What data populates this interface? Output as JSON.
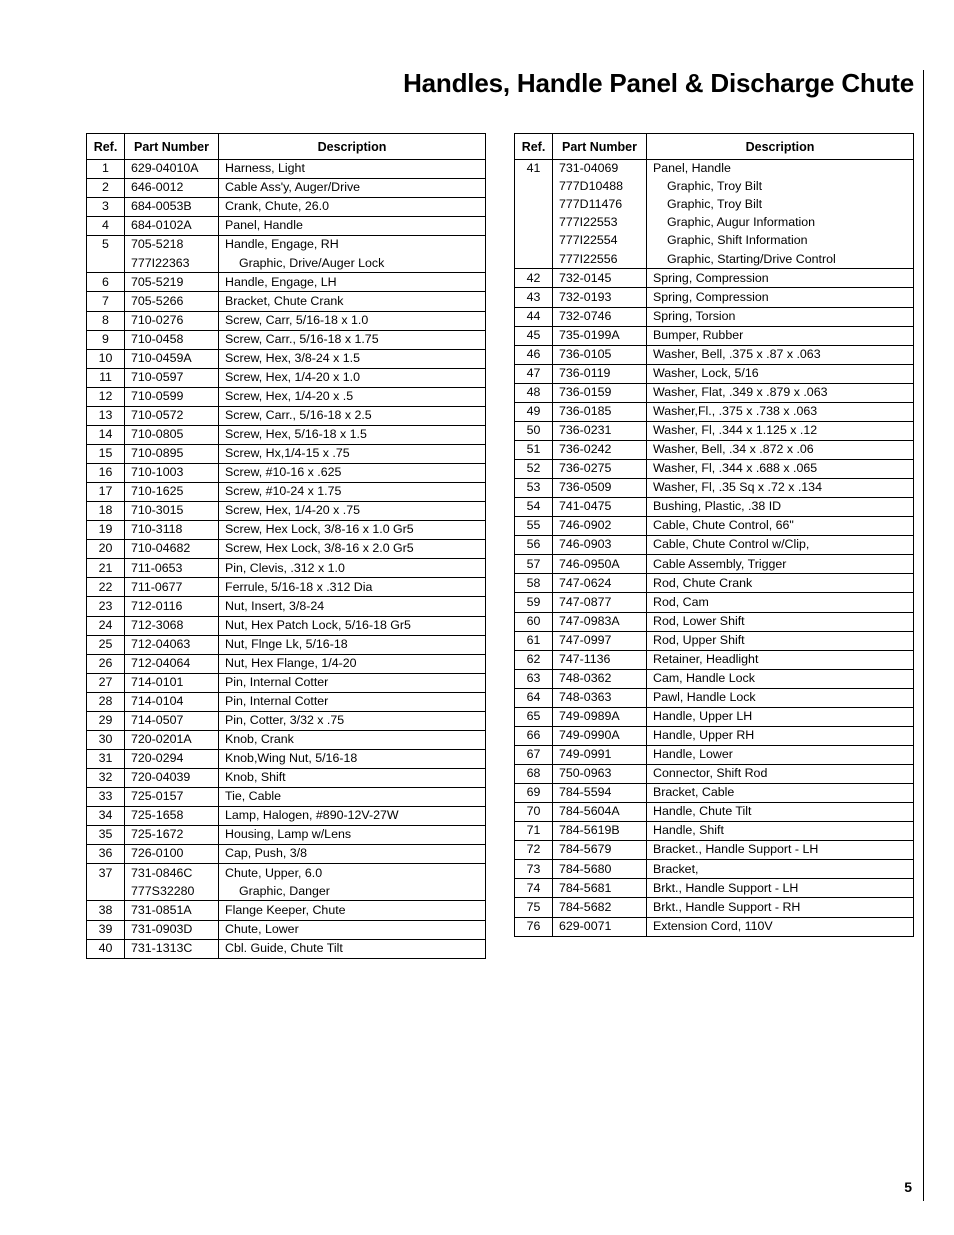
{
  "title": "Handles, Handle Panel & Discharge Chute",
  "page_number": "5",
  "headers": {
    "ref": "Ref.",
    "pn": "Part Number",
    "desc": "Description"
  },
  "left": [
    {
      "ref": "1",
      "pn": [
        "629-04010A"
      ],
      "desc": [
        "Harness, Light"
      ]
    },
    {
      "ref": "2",
      "pn": [
        "646-0012"
      ],
      "desc": [
        "Cable Ass'y, Auger/Drive"
      ]
    },
    {
      "ref": "3",
      "pn": [
        "684-0053B"
      ],
      "desc": [
        "Crank, Chute, 26.0"
      ]
    },
    {
      "ref": "4",
      "pn": [
        "684-0102A"
      ],
      "desc": [
        "Panel, Handle"
      ]
    },
    {
      "ref": "5",
      "pn": [
        "705-5218",
        "777I22363"
      ],
      "desc": [
        "Handle, Engage, RH",
        "Graphic, Drive/Auger Lock"
      ],
      "sub": [
        0,
        1
      ]
    },
    {
      "ref": "6",
      "pn": [
        "705-5219"
      ],
      "desc": [
        "Handle, Engage, LH"
      ]
    },
    {
      "ref": "7",
      "pn": [
        "705-5266"
      ],
      "desc": [
        "Bracket, Chute Crank"
      ]
    },
    {
      "ref": "8",
      "pn": [
        "710-0276"
      ],
      "desc": [
        "Screw, Carr, 5/16-18 x 1.0"
      ]
    },
    {
      "ref": "9",
      "pn": [
        "710-0458"
      ],
      "desc": [
        "Screw, Carr., 5/16-18 x 1.75"
      ]
    },
    {
      "ref": "10",
      "pn": [
        "710-0459A"
      ],
      "desc": [
        "Screw, Hex, 3/8-24 x 1.5"
      ]
    },
    {
      "ref": "11",
      "pn": [
        "710-0597"
      ],
      "desc": [
        "Screw, Hex, 1/4-20 x 1.0"
      ]
    },
    {
      "ref": "12",
      "pn": [
        "710-0599"
      ],
      "desc": [
        "Screw, Hex, 1/4-20 x .5"
      ]
    },
    {
      "ref": "13",
      "pn": [
        "710-0572"
      ],
      "desc": [
        "Screw, Carr., 5/16-18 x 2.5"
      ]
    },
    {
      "ref": "14",
      "pn": [
        "710-0805"
      ],
      "desc": [
        "Screw, Hex, 5/16-18 x 1.5"
      ]
    },
    {
      "ref": "15",
      "pn": [
        "710-0895"
      ],
      "desc": [
        "Screw, Hx,1/4-15 x .75"
      ]
    },
    {
      "ref": "16",
      "pn": [
        "710-1003"
      ],
      "desc": [
        "Screw, #10-16 x .625"
      ]
    },
    {
      "ref": "17",
      "pn": [
        "710-1625"
      ],
      "desc": [
        "Screw, #10-24 x 1.75"
      ]
    },
    {
      "ref": "18",
      "pn": [
        "710-3015"
      ],
      "desc": [
        "Screw, Hex, 1/4-20 x .75"
      ]
    },
    {
      "ref": "19",
      "pn": [
        "710-3118"
      ],
      "desc": [
        "Screw, Hex Lock, 3/8-16 x 1.0 Gr5"
      ]
    },
    {
      "ref": "20",
      "pn": [
        "710-04682"
      ],
      "desc": [
        "Screw, Hex Lock, 3/8-16 x 2.0 Gr5"
      ]
    },
    {
      "ref": "21",
      "pn": [
        "711-0653"
      ],
      "desc": [
        "Pin, Clevis, .312 x 1.0"
      ]
    },
    {
      "ref": "22",
      "pn": [
        "711-0677"
      ],
      "desc": [
        "Ferrule, 5/16-18 x .312 Dia"
      ]
    },
    {
      "ref": "23",
      "pn": [
        "712-0116"
      ],
      "desc": [
        "Nut, Insert, 3/8-24"
      ]
    },
    {
      "ref": "24",
      "pn": [
        "712-3068"
      ],
      "desc": [
        "Nut, Hex Patch Lock, 5/16-18 Gr5"
      ]
    },
    {
      "ref": "25",
      "pn": [
        "712-04063"
      ],
      "desc": [
        "Nut, Flnge Lk, 5/16-18"
      ]
    },
    {
      "ref": "26",
      "pn": [
        "712-04064"
      ],
      "desc": [
        "Nut, Hex Flange, 1/4-20"
      ]
    },
    {
      "ref": "27",
      "pn": [
        "714-0101"
      ],
      "desc": [
        "Pin, Internal Cotter"
      ]
    },
    {
      "ref": "28",
      "pn": [
        "714-0104"
      ],
      "desc": [
        "Pin, Internal Cotter"
      ]
    },
    {
      "ref": "29",
      "pn": [
        "714-0507"
      ],
      "desc": [
        "Pin, Cotter, 3/32 x .75"
      ]
    },
    {
      "ref": "30",
      "pn": [
        "720-0201A"
      ],
      "desc": [
        "Knob, Crank"
      ]
    },
    {
      "ref": "31",
      "pn": [
        "720-0294"
      ],
      "desc": [
        "Knob,Wing Nut, 5/16-18"
      ]
    },
    {
      "ref": "32",
      "pn": [
        "720-04039"
      ],
      "desc": [
        "Knob, Shift"
      ]
    },
    {
      "ref": "33",
      "pn": [
        "725-0157"
      ],
      "desc": [
        "Tie, Cable"
      ]
    },
    {
      "ref": "34",
      "pn": [
        "725-1658"
      ],
      "desc": [
        "Lamp, Halogen, #890-12V-27W"
      ]
    },
    {
      "ref": "35",
      "pn": [
        "725-1672"
      ],
      "desc": [
        "Housing, Lamp w/Lens"
      ]
    },
    {
      "ref": "36",
      "pn": [
        "726-0100"
      ],
      "desc": [
        "Cap, Push, 3/8"
      ]
    },
    {
      "ref": "37",
      "pn": [
        "731-0846C",
        "777S32280"
      ],
      "desc": [
        "Chute, Upper, 6.0",
        "Graphic, Danger"
      ],
      "sub": [
        0,
        1
      ]
    },
    {
      "ref": "38",
      "pn": [
        "731-0851A"
      ],
      "desc": [
        "Flange Keeper, Chute"
      ]
    },
    {
      "ref": "39",
      "pn": [
        "731-0903D"
      ],
      "desc": [
        "Chute, Lower"
      ]
    },
    {
      "ref": "40",
      "pn": [
        "731-1313C"
      ],
      "desc": [
        "Cbl. Guide, Chute Tilt"
      ]
    }
  ],
  "right": [
    {
      "ref": "41",
      "pn": [
        "731-04069",
        "777D10488",
        "777D11476",
        "777I22553",
        "777I22554",
        "777I22556"
      ],
      "desc": [
        "Panel, Handle",
        "Graphic, Troy Bilt",
        "Graphic, Troy Bilt",
        "Graphic, Augur Information",
        "Graphic, Shift Information",
        "Graphic, Starting/Drive Control"
      ],
      "sub": [
        0,
        1,
        1,
        1,
        1,
        1
      ]
    },
    {
      "ref": "42",
      "pn": [
        "732-0145"
      ],
      "desc": [
        "Spring, Compression"
      ]
    },
    {
      "ref": "43",
      "pn": [
        "732-0193"
      ],
      "desc": [
        "Spring, Compression"
      ]
    },
    {
      "ref": "44",
      "pn": [
        "732-0746"
      ],
      "desc": [
        "Spring, Torsion"
      ]
    },
    {
      "ref": "45",
      "pn": [
        "735-0199A"
      ],
      "desc": [
        "Bumper, Rubber"
      ]
    },
    {
      "ref": "46",
      "pn": [
        "736-0105"
      ],
      "desc": [
        "Washer, Bell, .375 x .87 x .063"
      ]
    },
    {
      "ref": "47",
      "pn": [
        "736-0119"
      ],
      "desc": [
        "Washer, Lock, 5/16"
      ]
    },
    {
      "ref": "48",
      "pn": [
        "736-0159"
      ],
      "desc": [
        "Washer, Flat, .349 x .879 x .063"
      ]
    },
    {
      "ref": "49",
      "pn": [
        "736-0185"
      ],
      "desc": [
        "Washer,Fl., .375 x .738 x .063"
      ]
    },
    {
      "ref": "50",
      "pn": [
        "736-0231"
      ],
      "desc": [
        "Washer, Fl, .344 x 1.125 x .12"
      ]
    },
    {
      "ref": "51",
      "pn": [
        "736-0242"
      ],
      "desc": [
        "Washer, Bell, .34 x .872 x .06"
      ]
    },
    {
      "ref": "52",
      "pn": [
        "736-0275"
      ],
      "desc": [
        "Washer, Fl, .344 x .688 x .065"
      ]
    },
    {
      "ref": "53",
      "pn": [
        "736-0509"
      ],
      "desc": [
        "Washer, Fl, .35 Sq x .72 x .134"
      ]
    },
    {
      "ref": "54",
      "pn": [
        "741-0475"
      ],
      "desc": [
        "Bushing, Plastic, .38 ID"
      ]
    },
    {
      "ref": "55",
      "pn": [
        "746-0902"
      ],
      "desc": [
        "Cable, Chute Control, 66\""
      ]
    },
    {
      "ref": "56",
      "pn": [
        "746-0903"
      ],
      "desc": [
        "Cable, Chute Control w/Clip,"
      ]
    },
    {
      "ref": "57",
      "pn": [
        "746-0950A"
      ],
      "desc": [
        "Cable Assembly, Trigger"
      ]
    },
    {
      "ref": "58",
      "pn": [
        "747-0624"
      ],
      "desc": [
        "Rod, Chute Crank"
      ]
    },
    {
      "ref": "59",
      "pn": [
        "747-0877"
      ],
      "desc": [
        "Rod, Cam"
      ]
    },
    {
      "ref": "60",
      "pn": [
        "747-0983A"
      ],
      "desc": [
        "Rod, Lower Shift"
      ]
    },
    {
      "ref": "61",
      "pn": [
        "747-0997"
      ],
      "desc": [
        "Rod, Upper Shift"
      ]
    },
    {
      "ref": "62",
      "pn": [
        "747-1136"
      ],
      "desc": [
        "Retainer, Headlight"
      ]
    },
    {
      "ref": "63",
      "pn": [
        "748-0362"
      ],
      "desc": [
        "Cam, Handle Lock"
      ]
    },
    {
      "ref": "64",
      "pn": [
        "748-0363"
      ],
      "desc": [
        "Pawl, Handle Lock"
      ]
    },
    {
      "ref": "65",
      "pn": [
        "749-0989A"
      ],
      "desc": [
        "Handle, Upper LH"
      ]
    },
    {
      "ref": "66",
      "pn": [
        "749-0990A"
      ],
      "desc": [
        "Handle, Upper RH"
      ]
    },
    {
      "ref": "67",
      "pn": [
        "749-0991"
      ],
      "desc": [
        "Handle, Lower"
      ]
    },
    {
      "ref": "68",
      "pn": [
        "750-0963"
      ],
      "desc": [
        "Connector, Shift Rod"
      ]
    },
    {
      "ref": "69",
      "pn": [
        "784-5594"
      ],
      "desc": [
        "Bracket, Cable"
      ]
    },
    {
      "ref": "70",
      "pn": [
        "784-5604A"
      ],
      "desc": [
        "Handle, Chute Tilt"
      ]
    },
    {
      "ref": "71",
      "pn": [
        "784-5619B"
      ],
      "desc": [
        "Handle, Shift"
      ]
    },
    {
      "ref": "72",
      "pn": [
        "784-5679"
      ],
      "desc": [
        "Bracket., Handle Support - LH"
      ]
    },
    {
      "ref": "73",
      "pn": [
        "784-5680"
      ],
      "desc": [
        "Bracket,"
      ]
    },
    {
      "ref": "74",
      "pn": [
        "784-5681"
      ],
      "desc": [
        "Brkt., Handle Support - LH"
      ]
    },
    {
      "ref": "75",
      "pn": [
        "784-5682"
      ],
      "desc": [
        "Brkt., Handle Support - RH"
      ]
    },
    {
      "ref": "76",
      "pn": [
        "629-0071"
      ],
      "desc": [
        "Extension Cord, 110V"
      ]
    }
  ]
}
